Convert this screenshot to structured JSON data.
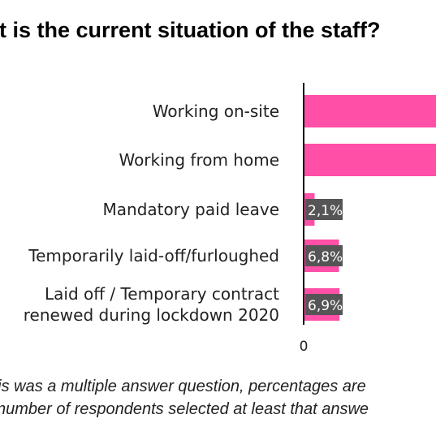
{
  "chart_data": {
    "type": "bar",
    "orientation": "horizontal",
    "title": "at is the current situation of the staff?",
    "categories": [
      "Working on-site",
      "Working from home",
      "Mandatory paid leave",
      "Temporarily laid-off/furloughed",
      [
        "Laid off / Temporary contract",
        "renewed during lockdown 2020"
      ]
    ],
    "values": [
      null,
      null,
      2.1,
      6.8,
      6.9
    ],
    "value_labels": [
      "",
      "",
      "2,1%",
      "6,8%",
      "6,9%"
    ],
    "x_tick_labels": [
      "0",
      "("
    ],
    "x_ticks": [
      0,
      50
    ],
    "xlim": [
      0,
      50
    ],
    "grid": false,
    "legend": "none",
    "bar_color": "#ff4fa7",
    "label_bg_color": "#555555",
    "footnote": [
      "his was a multiple answer question, percentages are",
      "number of respondents selected at least that answe"
    ]
  }
}
